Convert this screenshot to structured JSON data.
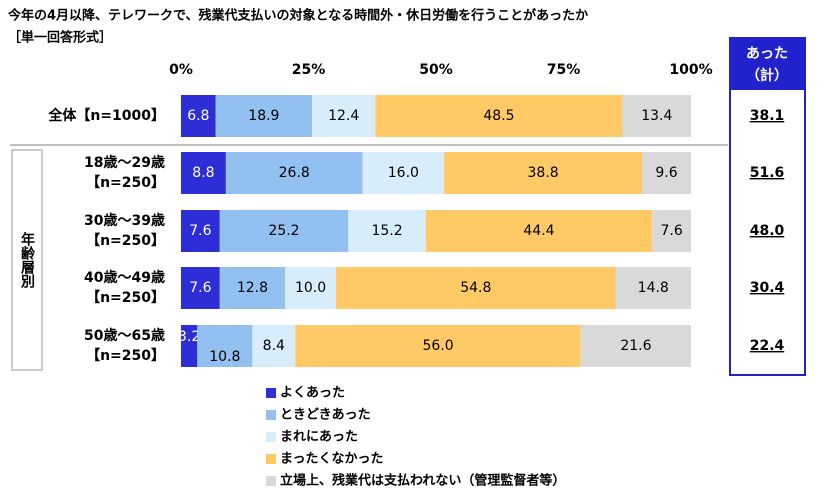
{
  "chart_data": {
    "type": "stacked_bar_horizontal",
    "title": "今年の4月以降、テレワークで、残業代支払いの対象となる時間外・休日労働を行うことがあったか",
    "subtitle": "［単一回答形式］",
    "group_label": "年齢層別",
    "categories": [
      [
        "全体【n=1000】"
      ],
      [
        "18歳～29歳",
        "【n=250】"
      ],
      [
        "30歳～39歳",
        "【n=250】"
      ],
      [
        "40歳～49歳",
        "【n=250】"
      ],
      [
        "50歳～65歳",
        "【n=250】"
      ]
    ],
    "xlim": [
      0,
      100
    ],
    "xticks": [
      {
        "value": 0,
        "label": "0%"
      },
      {
        "value": 25,
        "label": "25%"
      },
      {
        "value": 50,
        "label": "50%"
      },
      {
        "value": 75,
        "label": "75%"
      },
      {
        "value": 100,
        "label": "100%"
      }
    ],
    "series": [
      {
        "name": "よくあった",
        "color": "#2e2ed6",
        "values": [
          6.8,
          8.8,
          7.6,
          7.6,
          3.2
        ],
        "value_labels": [
          "6.8",
          "8.8",
          "7.6",
          "7.6",
          "3.2"
        ]
      },
      {
        "name": "ときどきあった",
        "color": "#92c0f0",
        "values": [
          18.9,
          26.8,
          25.2,
          12.8,
          10.8
        ],
        "value_labels": [
          "18.9",
          "26.8",
          "25.2",
          "12.8",
          "10.8"
        ]
      },
      {
        "name": "まれにあった",
        "color": "#d8edfb",
        "values": [
          12.4,
          16.0,
          15.2,
          10.0,
          8.4
        ],
        "value_labels": [
          "12.4",
          "16.0",
          "15.2",
          "10.0",
          "8.4"
        ]
      },
      {
        "name": "まったくなかった",
        "color": "#ffca66",
        "values": [
          48.5,
          38.8,
          44.4,
          54.8,
          56.0
        ],
        "value_labels": [
          "48.5",
          "38.8",
          "44.4",
          "54.8",
          "56.0"
        ]
      },
      {
        "name": "立場上、残業代は支払われない（管理監督者等）",
        "color": "#d9d9d9",
        "values": [
          13.4,
          9.6,
          7.6,
          14.8,
          21.6
        ],
        "value_labels": [
          "13.4",
          "9.6",
          "7.6",
          "14.8",
          "21.6"
        ]
      }
    ],
    "total": {
      "header": [
        "あった",
        "（計）"
      ],
      "values": [
        38.1,
        51.6,
        48.0,
        30.4,
        22.4
      ],
      "value_labels": [
        "38.1",
        "51.6",
        "48.0",
        "30.4",
        "22.4"
      ]
    }
  }
}
